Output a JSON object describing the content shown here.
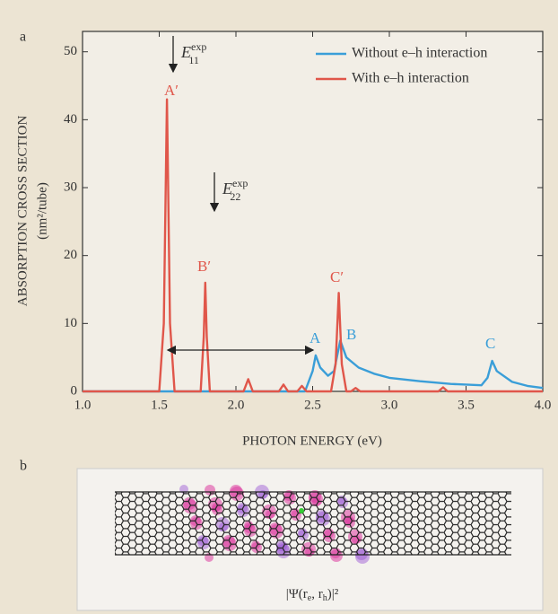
{
  "chart_data": {
    "type": "line",
    "panel_label": "a",
    "y_label": "ABSORPTION CROSS SECTION",
    "y_unit_label": "(nm²/tube)",
    "x_label": "PHOTON ENERGY (eV)",
    "xlim": [
      1.0,
      4.0
    ],
    "ylim": [
      0,
      53
    ],
    "xticks": [
      {
        "value": 1.0,
        "label": "1.0"
      },
      {
        "value": 1.5,
        "label": "1.5"
      },
      {
        "value": 2.0,
        "label": "2.0"
      },
      {
        "value": 2.5,
        "label": "2.5"
      },
      {
        "value": 3.0,
        "label": "3.0"
      },
      {
        "value": 3.5,
        "label": "3.5"
      },
      {
        "value": 4.0,
        "label": "4.0"
      }
    ],
    "yticks": [
      0,
      10,
      20,
      30,
      40,
      50
    ],
    "legend": "upper right",
    "series": [
      {
        "name": "Without e–h interaction",
        "color": "#3a9ed8",
        "x": [
          1.0,
          2.45,
          2.5,
          2.52,
          2.55,
          2.6,
          2.64,
          2.68,
          2.72,
          2.8,
          2.9,
          3.0,
          3.2,
          3.4,
          3.6,
          3.64,
          3.67,
          3.7,
          3.8,
          3.9,
          4.0
        ],
        "values": [
          0,
          0,
          3,
          5.3,
          3.5,
          2.3,
          3,
          7.5,
          5,
          3.5,
          2.6,
          2,
          1.5,
          1.1,
          0.9,
          2,
          4.5,
          3,
          1.4,
          0.8,
          0.5
        ]
      },
      {
        "name": "With e–h interaction",
        "color": "#e0564a",
        "x": [
          1.0,
          1.5,
          1.53,
          1.55,
          1.57,
          1.6,
          1.77,
          1.79,
          1.8,
          1.81,
          1.83,
          2.05,
          2.08,
          2.11,
          2.28,
          2.31,
          2.34,
          2.4,
          2.43,
          2.46,
          2.62,
          2.65,
          2.67,
          2.69,
          2.72,
          2.75,
          2.78,
          2.81,
          3.32,
          3.35,
          3.38,
          4.0
        ],
        "values": [
          0,
          0,
          10,
          43,
          10,
          0,
          0,
          8,
          16,
          8,
          0,
          0,
          1.8,
          0,
          0,
          1,
          0,
          0,
          0.8,
          0,
          0,
          4,
          14.5,
          4,
          0,
          0,
          0.5,
          0,
          0,
          0.6,
          0,
          0
        ]
      }
    ],
    "peak_labels_red": [
      "A′",
      "B′",
      "C′"
    ],
    "peak_labels_blue": [
      "A",
      "B",
      "C"
    ],
    "e11": {
      "text": "E",
      "sup": "exp",
      "sub": "11"
    },
    "e22": {
      "text": "E",
      "sup": "exp",
      "sub": "22"
    }
  },
  "panel_b": {
    "panel_label": "b",
    "caption": "|Ψ(r",
    "caption_sub_e": "e",
    "caption_mid": ", r",
    "caption_sub_h": "h",
    "caption_end": ")|²"
  }
}
